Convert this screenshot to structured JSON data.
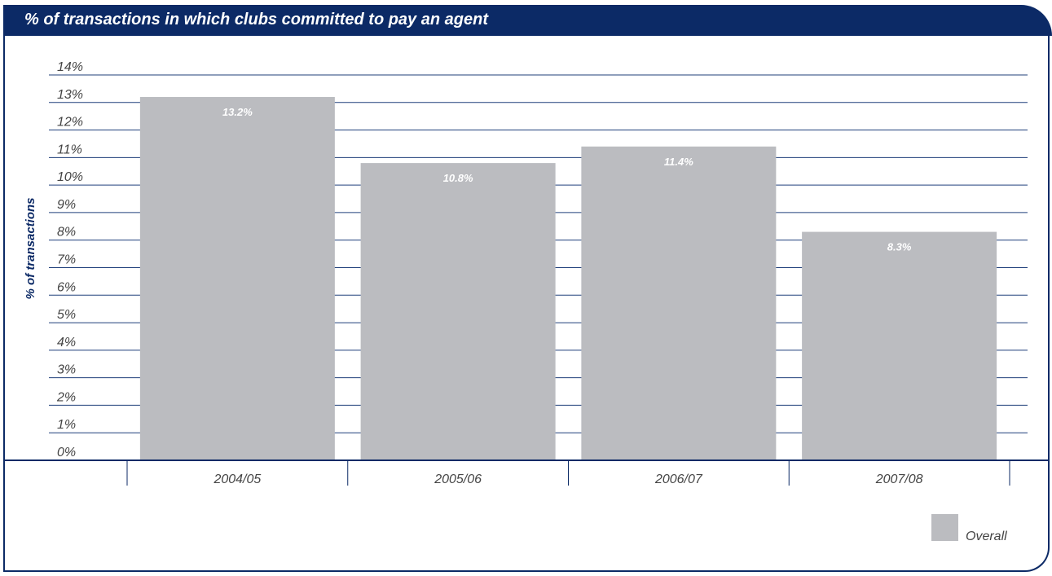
{
  "chart_data": {
    "type": "bar",
    "title": "% of transactions in which clubs committed to pay an agent",
    "ylabel": "% of transactions",
    "xlabel": "",
    "categories": [
      "2004/05",
      "2005/06",
      "2006/07",
      "2007/08"
    ],
    "series": [
      {
        "name": "Overall",
        "values": [
          13.2,
          10.8,
          11.4,
          8.3
        ],
        "color": "#bbbcc0"
      }
    ],
    "data_labels": [
      "13.2%",
      "10.8%",
      "11.4%",
      "8.3%"
    ],
    "ylim": [
      0,
      14
    ],
    "y_ticks": [
      "0%",
      "1%",
      "2%",
      "3%",
      "4%",
      "5%",
      "6%",
      "7%",
      "8%",
      "9%",
      "10%",
      "11%",
      "12%",
      "13%",
      "14%"
    ],
    "grid": true,
    "legend_position": "bottom-right"
  },
  "colors": {
    "header": "#0c2a66",
    "gridline": "#1f3f7a",
    "bar": "#bbbcc0"
  }
}
